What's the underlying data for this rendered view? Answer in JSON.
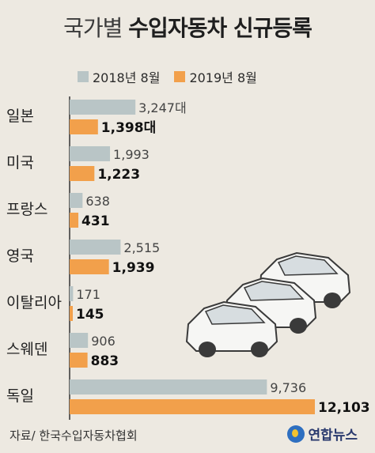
{
  "title": {
    "light": "국가별",
    "bold": "수입자동차 신규등록"
  },
  "legend": {
    "items": [
      {
        "label": "2018년 8월",
        "color": "#b9c5c6"
      },
      {
        "label": "2019년 8월",
        "color": "#f2a04b"
      }
    ]
  },
  "source": "자료/ 한국수입자동차협회",
  "logo_text": "연합뉴스",
  "chart_data": {
    "type": "bar",
    "orientation": "horizontal",
    "categories": [
      "일본",
      "미국",
      "프랑스",
      "영국",
      "이탈리아",
      "스웨덴",
      "독일"
    ],
    "series": [
      {
        "name": "2018년 8월",
        "color": "#b9c5c6",
        "values": [
          3247,
          1993,
          638,
          2515,
          171,
          906,
          9736
        ],
        "labels": [
          "3,247대",
          "1,993",
          "638",
          "2,515",
          "171",
          "906",
          "9,736"
        ]
      },
      {
        "name": "2019년 8월",
        "color": "#f2a04b",
        "values": [
          1398,
          1223,
          431,
          1939,
          145,
          883,
          12103
        ],
        "labels": [
          "1,398대",
          "1,223",
          "431",
          "1,939",
          "145",
          "883",
          "12,103"
        ]
      }
    ],
    "unit": "대",
    "xlim": [
      0,
      12103
    ],
    "grid": false,
    "legend_position": "top"
  }
}
